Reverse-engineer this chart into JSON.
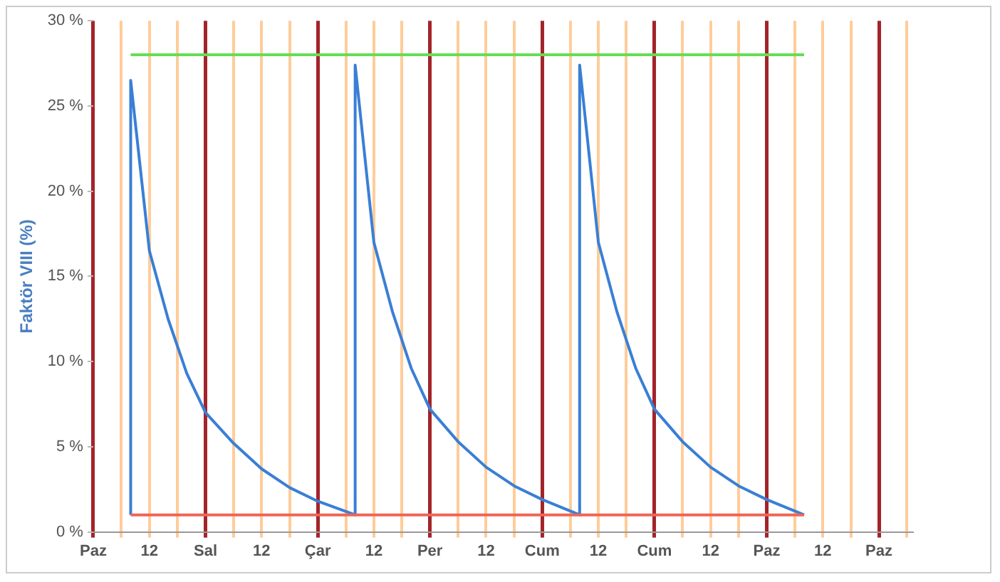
{
  "chart_data": {
    "type": "line",
    "ylabel": "Faktör VIII (%)",
    "xlim": [
      "--03-01T00:00",
      "--03-08T07:00"
    ],
    "xticks": [
      {
        "value": "--03-01T00:00",
        "label": "Paz"
      },
      {
        "value": "--03-01T06:00",
        "label": null
      },
      {
        "value": "--03-01T12:00",
        "label": "12"
      },
      {
        "value": "--03-01T18:00",
        "label": null
      },
      {
        "value": "--03-02T00:00",
        "label": "Sal"
      },
      {
        "value": "--03-02T06:00",
        "label": null
      },
      {
        "value": "--03-02T12:00",
        "label": "12"
      },
      {
        "value": "--03-02T18:00",
        "label": null
      },
      {
        "value": "--03-03T00:00",
        "label": "Çar"
      },
      {
        "value": "--03-03T06:00",
        "label": null
      },
      {
        "value": "--03-03T12:00",
        "label": "12"
      },
      {
        "value": "--03-03T18:00",
        "label": null
      },
      {
        "value": "--03-04T00:00",
        "label": "Per"
      },
      {
        "value": "--03-04T06:00",
        "label": null
      },
      {
        "value": "--03-04T12:00",
        "label": "12"
      },
      {
        "value": "--03-04T18:00",
        "label": null
      },
      {
        "value": "--03-05T00:00",
        "label": "Cum"
      },
      {
        "value": "--03-05T06:00",
        "label": null
      },
      {
        "value": "--03-05T12:00",
        "label": "12"
      },
      {
        "value": "--03-05T18:00",
        "label": null
      },
      {
        "value": "--03-06T00:00",
        "label": "Cum"
      },
      {
        "value": "--03-06T06:00",
        "label": null
      },
      {
        "value": "--03-06T12:00",
        "label": "12"
      },
      {
        "value": "--03-06T18:00",
        "label": null
      },
      {
        "value": "--03-07T00:00",
        "label": "Paz"
      },
      {
        "value": "--03-07T06:00",
        "label": null
      },
      {
        "value": "--03-07T12:00",
        "label": "12"
      },
      {
        "value": "--03-07T18:00",
        "label": null
      },
      {
        "value": "--03-08T00:00",
        "label": "Paz"
      },
      {
        "value": "--03-08T06:00",
        "label": null
      }
    ],
    "ylim": [
      0,
      30
    ],
    "yticks": [
      {
        "value": 0,
        "label": "0 %"
      },
      {
        "value": 5,
        "label": "5 %"
      },
      {
        "value": 10,
        "label": "10 %"
      },
      {
        "value": 15,
        "label": "15 %"
      },
      {
        "value": 20,
        "label": "20 %"
      },
      {
        "value": 25,
        "label": "25 %"
      },
      {
        "value": 30,
        "label": "30 %"
      }
    ],
    "grid": "x",
    "legend": false,
    "marker": "none",
    "line_style": "solid",
    "series": [
      {
        "color": "#66dd55",
        "x": [
          "--03-01T08:00",
          "--03-07T08:00"
        ],
        "values": [
          28,
          28
        ]
      },
      {
        "color": "#ee6655",
        "x": [
          "--03-01T08:00",
          "--03-07T08:00"
        ],
        "values": [
          1,
          1
        ]
      },
      {
        "color": "#3a7fd5",
        "x": [
          "--03-01T08:00",
          "--03-01T08:00",
          "--03-01T12:00",
          "--03-01T16:00",
          "--03-01T20:00",
          "--03-02T00:00",
          "--03-02T06:00",
          "--03-02T12:00",
          "--03-02T18:00",
          "--03-03T00:00",
          "--03-03T08:00",
          "--03-03T08:00",
          "--03-03T12:00",
          "--03-03T16:00",
          "--03-03T20:00",
          "--03-04T00:00",
          "--03-04T06:00",
          "--03-04T12:00",
          "--03-04T18:00",
          "--03-05T00:00",
          "--03-05T08:00",
          "--03-05T08:00",
          "--03-05T12:00",
          "--03-05T16:00",
          "--03-05T20:00",
          "--03-06T00:00",
          "--03-06T06:00",
          "--03-06T12:00",
          "--03-06T18:00",
          "--03-07T00:00",
          "--03-07T08:00"
        ],
        "values": [
          1,
          26.5,
          16.5,
          12.5,
          9.3,
          7,
          5.2,
          3.7,
          2.6,
          1.8,
          1,
          27.4,
          17,
          12.9,
          9.6,
          7.2,
          5.3,
          3.8,
          2.7,
          1.9,
          1,
          27.4,
          17,
          12.9,
          9.6,
          7.2,
          5.3,
          3.8,
          2.7,
          1.9,
          1
        ]
      }
    ]
  }
}
